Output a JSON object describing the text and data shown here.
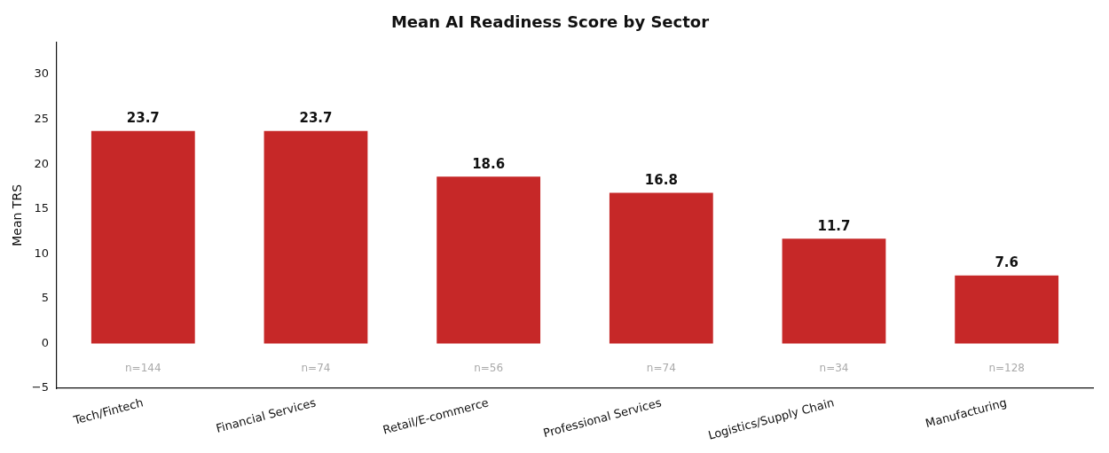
{
  "chart_data": {
    "type": "bar",
    "title": "Mean AI Readiness Score by Sector",
    "ylabel": "Mean TRS",
    "categories": [
      "Tech/Fintech",
      "Financial Services",
      "Retail/E-commerce",
      "Professional Services",
      "Logistics/Supply Chain",
      "Manufacturing"
    ],
    "values": [
      23.7,
      23.7,
      18.6,
      16.8,
      11.7,
      7.6
    ],
    "color": "#c62828",
    "ylim": [
      -5,
      33.6
    ],
    "yticks": [
      -5,
      0,
      5,
      10,
      15,
      20,
      25,
      30
    ],
    "grid": false,
    "data_labels": true,
    "annotations": [
      "n=144",
      "n=74",
      "n=56",
      "n=74",
      "n=34",
      "n=128"
    ]
  }
}
